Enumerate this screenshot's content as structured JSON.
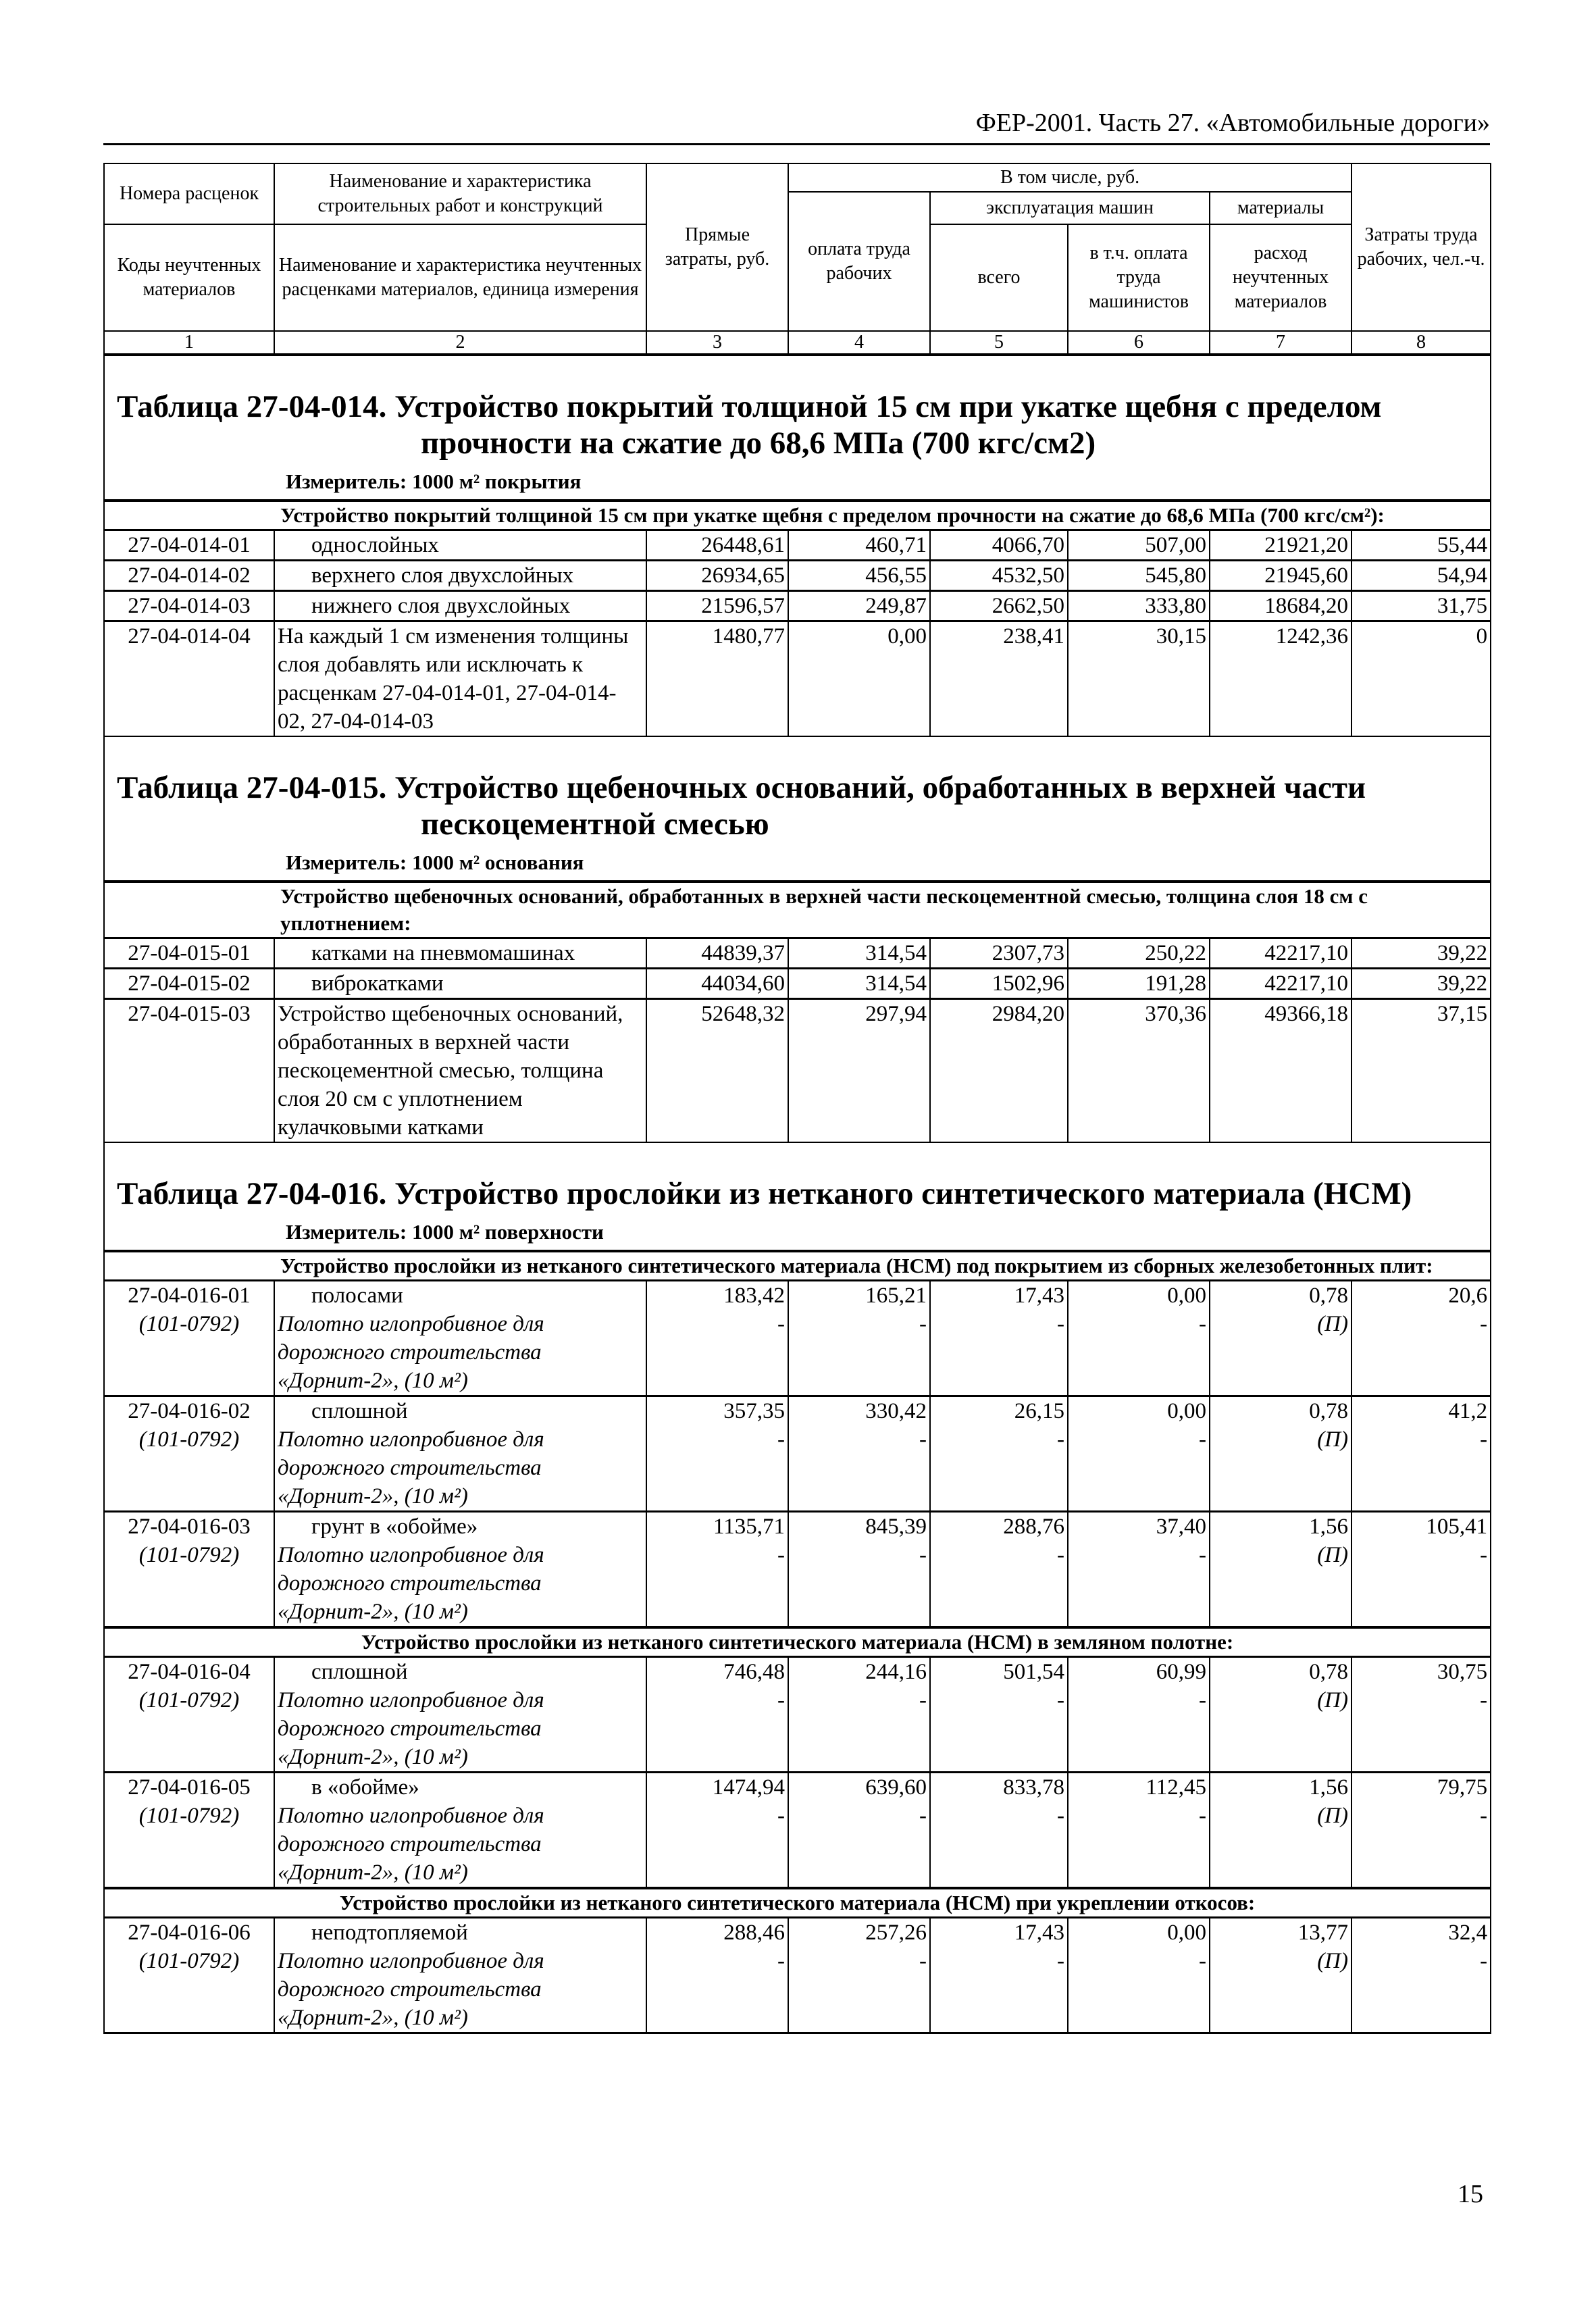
{
  "header": {
    "running_title": "ФЕР-2001. Часть 27. «Автомобильные дороги»",
    "page_number": "15"
  },
  "column_header": {
    "col1_top": "Номера расценок",
    "col1_bottom": "Коды неучтенных материалов",
    "col2_top": "Наименование и характеристика строительных работ и конструкций",
    "col2_bottom": "Наименование и характеристика неучтенных расценками материалов, единица измерения",
    "col3": "Прямые затраты, руб.",
    "including": "В том числе, руб.",
    "col4": "оплата труда рабочих",
    "machines": "эксплуатация машин",
    "materials": "материалы",
    "col5": "всего",
    "col6": "в т.ч. оплата труда машинистов",
    "col7": "расход неучтенных материалов",
    "col8": "Затраты труда рабочих, чел.-ч.",
    "numbers": [
      "1",
      "2",
      "3",
      "4",
      "5",
      "6",
      "7",
      "8"
    ]
  },
  "tables": [
    {
      "title_line1": "Таблица 27-04-014. Устройство покрытий толщиной 15 см при укатке щебня с пределом",
      "title_line2": "прочности на сжатие до 68,6 МПа (700 кгс/см2)",
      "measure": "Измеритель: 1000 м² покрытия",
      "groups": [
        {
          "heading": "Устройство покрытий толщиной 15 см при укатке щебня с пределом прочности на сжатие до 68,6 МПа (700 кгс/см²):",
          "rows": [
            {
              "code": "27-04-014-01",
              "name": "однослойных",
              "values": [
                "26448,61",
                "460,71",
                "4066,70",
                "507,00",
                "21921,20",
                "55,44"
              ]
            },
            {
              "code": "27-04-014-02",
              "name": "верхнего слоя двухслойных",
              "values": [
                "26934,65",
                "456,55",
                "4532,50",
                "545,80",
                "21945,60",
                "54,94"
              ]
            },
            {
              "code": "27-04-014-03",
              "name": "нижнего слоя двухслойных",
              "values": [
                "21596,57",
                "249,87",
                "2662,50",
                "333,80",
                "18684,20",
                "31,75"
              ]
            },
            {
              "code": "27-04-014-04",
              "name": "На каждый 1 см изменения толщины слоя добавлять или исключать к расценкам 27-04-014-01, 27-04-014-02, 27-04-014-03",
              "values": [
                "1480,77",
                "0,00",
                "238,41",
                "30,15",
                "1242,36",
                "0"
              ]
            }
          ]
        }
      ]
    },
    {
      "title_line1": "Таблица 27-04-015. Устройство щебеночных оснований, обработанных в верхней части",
      "title_line2": "пескоцементной смесью",
      "measure": "Измеритель: 1000 м² основания",
      "groups": [
        {
          "heading": "Устройство щебеночных оснований, обработанных в верхней части пескоцементной смесью, толщина слоя 18 см с уплотнением:",
          "rows": [
            {
              "code": "27-04-015-01",
              "name": "катками на пневмомашинах",
              "values": [
                "44839,37",
                "314,54",
                "2307,73",
                "250,22",
                "42217,10",
                "39,22"
              ]
            },
            {
              "code": "27-04-015-02",
              "name": "виброкатками",
              "values": [
                "44034,60",
                "314,54",
                "1502,96",
                "191,28",
                "42217,10",
                "39,22"
              ]
            },
            {
              "code": "27-04-015-03",
              "name": "Устройство щебеночных оснований, обработанных в верхней части пескоцементной смесью, толщина слоя 20 см с уплотнением кулачковыми катками",
              "values": [
                "52648,32",
                "297,94",
                "2984,20",
                "370,36",
                "49366,18",
                "37,15"
              ]
            }
          ]
        }
      ]
    },
    {
      "title_line1": "Таблица 27-04-016. Устройство прослойки из нетканого синтетического материала (НСМ)",
      "title_line2": "",
      "measure": "Измеритель: 1000 м² поверхности",
      "groups": [
        {
          "heading": "Устройство прослойки из нетканого синтетического материала (НСМ) под покрытием из сборных железобетонных плит:",
          "rows": [
            {
              "code": "27-04-016-01",
              "material_code": "(101-0792)",
              "name": "полосами",
              "material_name": "Полотно иглопробивное для дорожного строительства «Дорнит-2», (10 м²)",
              "values": [
                "183,42",
                "165,21",
                "17,43",
                "0,00",
                "0,78",
                "20,6"
              ],
              "material_values": [
                "-",
                "-",
                "-",
                "-",
                "(П)",
                "-"
              ]
            },
            {
              "code": "27-04-016-02",
              "material_code": "(101-0792)",
              "name": "сплошной",
              "material_name": "Полотно иглопробивное для дорожного строительства «Дорнит-2», (10 м²)",
              "values": [
                "357,35",
                "330,42",
                "26,15",
                "0,00",
                "0,78",
                "41,2"
              ],
              "material_values": [
                "-",
                "-",
                "-",
                "-",
                "(П)",
                "-"
              ]
            },
            {
              "code": "27-04-016-03",
              "material_code": "(101-0792)",
              "name": "грунт в «обойме»",
              "material_name": "Полотно иглопробивное для дорожного строительства «Дорнит-2», (10 м²)",
              "values": [
                "1135,71",
                "845,39",
                "288,76",
                "37,40",
                "1,56",
                "105,41"
              ],
              "material_values": [
                "-",
                "-",
                "-",
                "-",
                "(П)",
                "-"
              ]
            }
          ]
        },
        {
          "heading": "Устройство прослойки из нетканого синтетического материала (НСМ) в земляном полотне:",
          "rows": [
            {
              "code": "27-04-016-04",
              "material_code": "(101-0792)",
              "name": "сплошной",
              "material_name": "Полотно иглопробивное для дорожного строительства «Дорнит-2», (10 м²)",
              "values": [
                "746,48",
                "244,16",
                "501,54",
                "60,99",
                "0,78",
                "30,75"
              ],
              "material_values": [
                "-",
                "-",
                "-",
                "-",
                "(П)",
                "-"
              ]
            },
            {
              "code": "27-04-016-05",
              "material_code": "(101-0792)",
              "name": "в «обойме»",
              "material_name": "Полотно иглопробивное для дорожного строительства «Дорнит-2», (10 м²)",
              "values": [
                "1474,94",
                "639,60",
                "833,78",
                "112,45",
                "1,56",
                "79,75"
              ],
              "material_values": [
                "-",
                "-",
                "-",
                "-",
                "(П)",
                "-"
              ]
            }
          ]
        },
        {
          "heading": "Устройство прослойки из нетканого синтетического материала (НСМ) при укреплении откосов:",
          "rows": [
            {
              "code": "27-04-016-06",
              "material_code": "(101-0792)",
              "name": "неподтопляемой",
              "material_name": "Полотно иглопробивное для дорожного строительства «Дорнит-2», (10 м²)",
              "values": [
                "288,46",
                "257,26",
                "17,43",
                "0,00",
                "13,77",
                "32,4"
              ],
              "material_values": [
                "-",
                "-",
                "-",
                "-",
                "(П)",
                "-"
              ]
            }
          ]
        }
      ]
    }
  ]
}
